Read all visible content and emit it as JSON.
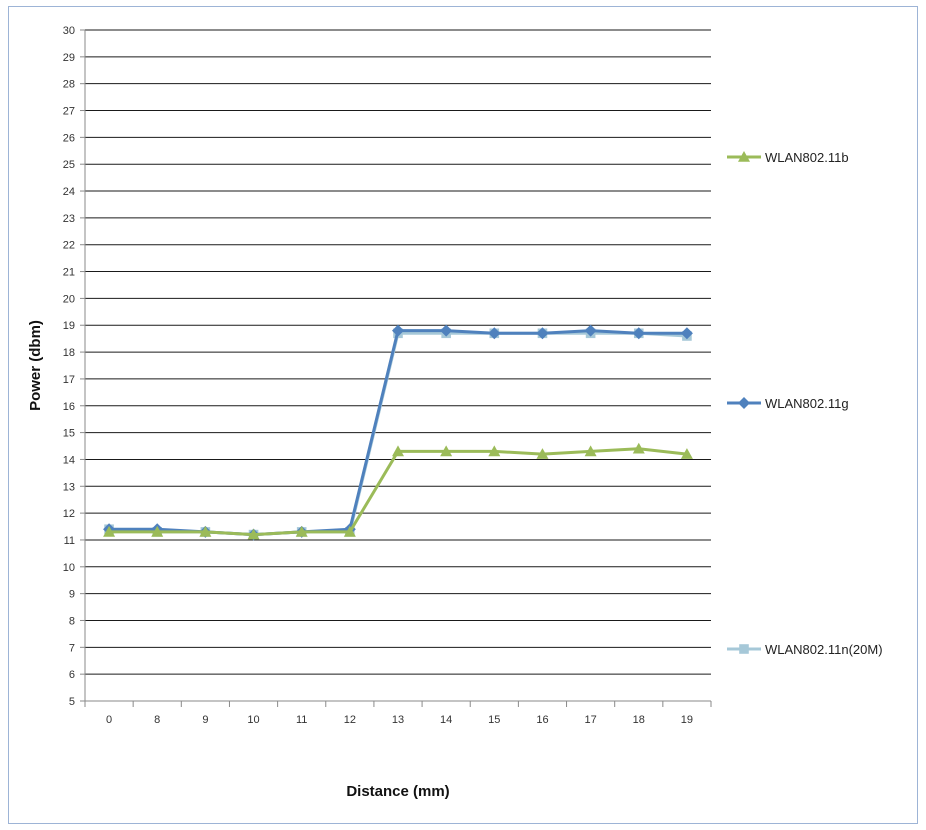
{
  "chart_data": {
    "type": "line",
    "xlabel": "Distance (mm)",
    "ylabel": "Power (dbm)",
    "categories": [
      "0",
      "8",
      "9",
      "10",
      "11",
      "12",
      "13",
      "14",
      "15",
      "16",
      "17",
      "18",
      "19"
    ],
    "ylim": [
      5,
      30
    ],
    "yticks": [
      5,
      6,
      7,
      8,
      9,
      10,
      11,
      12,
      13,
      14,
      15,
      16,
      17,
      18,
      19,
      20,
      21,
      22,
      23,
      24,
      25,
      26,
      27,
      28,
      29,
      30
    ],
    "grid": true,
    "legend": "right",
    "series": [
      {
        "name": "WLAN802.11b",
        "color": "#9bbb59",
        "marker": "triangle",
        "values": [
          11.3,
          11.3,
          11.3,
          11.2,
          11.3,
          11.3,
          14.3,
          14.3,
          14.3,
          14.2,
          14.3,
          14.4,
          14.2
        ]
      },
      {
        "name": "WLAN802.11g",
        "color": "#4f81bd",
        "marker": "diamond",
        "values": [
          11.4,
          11.4,
          11.3,
          11.2,
          11.3,
          11.4,
          18.8,
          18.8,
          18.7,
          18.7,
          18.8,
          18.7,
          18.7
        ]
      },
      {
        "name": "WLAN802.11n(20M)",
        "color": "#a6c8d8",
        "marker": "square",
        "values": [
          11.4,
          11.3,
          11.3,
          11.2,
          11.3,
          11.3,
          18.7,
          18.7,
          18.7,
          18.7,
          18.7,
          18.7,
          18.6
        ]
      }
    ]
  }
}
